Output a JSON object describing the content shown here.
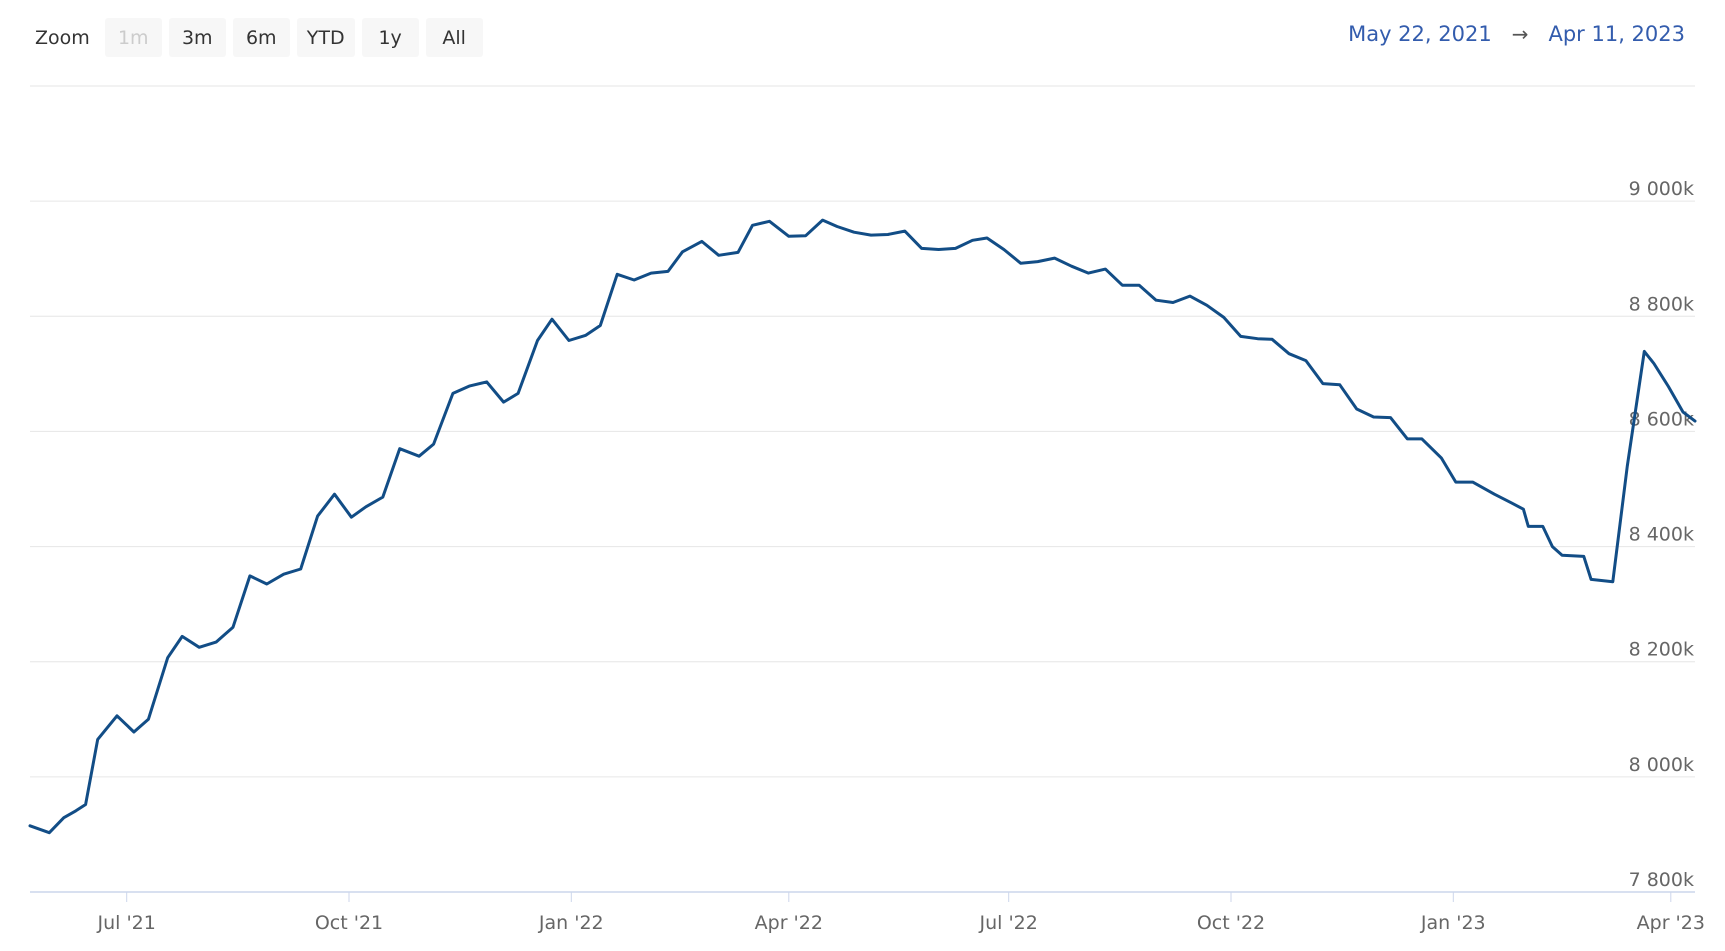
{
  "toolbar": {
    "zoom_label": "Zoom",
    "buttons": [
      {
        "label": "1m",
        "enabled": false
      },
      {
        "label": "3m",
        "enabled": true
      },
      {
        "label": "6m",
        "enabled": true
      },
      {
        "label": "YTD",
        "enabled": true
      },
      {
        "label": "1y",
        "enabled": true
      },
      {
        "label": "All",
        "enabled": true
      }
    ],
    "range": {
      "from": "May 22, 2021",
      "arrow": "→",
      "to": "Apr 11, 2023"
    }
  },
  "colors": {
    "line": "#124d86",
    "grid": "#e6e6e6",
    "axis_line": "#ccd6eb",
    "axis_label": "#666666",
    "range_text": "#335cad",
    "button_bg": "#f7f7f7",
    "button_text": "#333333",
    "button_disabled_text": "#cccccc",
    "background": "#ffffff"
  },
  "chart_data": {
    "type": "line",
    "title": "",
    "xlabel": "",
    "ylabel": "",
    "x_start_label": "May 22, 2021",
    "x_end_label": "Apr 11, 2023",
    "total_days": 689,
    "x_tick_days": [
      40,
      132,
      224,
      314,
      405,
      497,
      589,
      679
    ],
    "x_tick_labels": [
      "Jul '21",
      "Oct '21",
      "Jan '22",
      "Apr '22",
      "Jul '22",
      "Oct '22",
      "Jan '23",
      "Apr '23"
    ],
    "y_tick_values": [
      9000,
      8800,
      8600,
      8400,
      8200,
      8000,
      7800
    ],
    "y_tick_labels": [
      "9 000k",
      "8 800k",
      "8 600k",
      "8 400k",
      "8 200k",
      "8 000k",
      "7 800k"
    ],
    "grid_values": [
      9200,
      9000,
      8800,
      8600,
      8400,
      8200,
      8000,
      7800
    ],
    "ylim": [
      7800,
      9200
    ],
    "unit": "k",
    "legend": "off",
    "grid": "on",
    "points_day_value": [
      [
        0,
        7915
      ],
      [
        8,
        7903
      ],
      [
        14,
        7929
      ],
      [
        19,
        7941
      ],
      [
        23,
        7952
      ],
      [
        28,
        8065
      ],
      [
        36,
        8106
      ],
      [
        43,
        8078
      ],
      [
        49,
        8100
      ],
      [
        57,
        8207
      ],
      [
        63,
        8244
      ],
      [
        70,
        8225
      ],
      [
        77,
        8234
      ],
      [
        84,
        8260
      ],
      [
        91,
        8349
      ],
      [
        98,
        8335
      ],
      [
        105,
        8352
      ],
      [
        112,
        8361
      ],
      [
        119,
        8453
      ],
      [
        126,
        8491
      ],
      [
        133,
        8451
      ],
      [
        139,
        8469
      ],
      [
        146,
        8486
      ],
      [
        153,
        8570
      ],
      [
        161,
        8557
      ],
      [
        167,
        8578
      ],
      [
        175,
        8666
      ],
      [
        182,
        8679
      ],
      [
        189,
        8686
      ],
      [
        196,
        8651
      ],
      [
        202,
        8666
      ],
      [
        210,
        8758
      ],
      [
        216,
        8795
      ],
      [
        223,
        8758
      ],
      [
        230,
        8767
      ],
      [
        236,
        8784
      ],
      [
        243,
        8873
      ],
      [
        250,
        8863
      ],
      [
        257,
        8875
      ],
      [
        264,
        8878
      ],
      [
        270,
        8912
      ],
      [
        278,
        8930
      ],
      [
        285,
        8906
      ],
      [
        293,
        8911
      ],
      [
        299,
        8958
      ],
      [
        306,
        8965
      ],
      [
        314,
        8939
      ],
      [
        321,
        8940
      ],
      [
        328,
        8967
      ],
      [
        334,
        8956
      ],
      [
        341,
        8946
      ],
      [
        348,
        8941
      ],
      [
        355,
        8942
      ],
      [
        362,
        8948
      ],
      [
        369,
        8918
      ],
      [
        376,
        8916
      ],
      [
        383,
        8918
      ],
      [
        390,
        8932
      ],
      [
        396,
        8936
      ],
      [
        403,
        8916
      ],
      [
        410,
        8892
      ],
      [
        417,
        8895
      ],
      [
        424,
        8901
      ],
      [
        431,
        8887
      ],
      [
        438,
        8875
      ],
      [
        445,
        8882
      ],
      [
        452,
        8854
      ],
      [
        459,
        8854
      ],
      [
        466,
        8828
      ],
      [
        473,
        8824
      ],
      [
        480,
        8835
      ],
      [
        487,
        8819
      ],
      [
        494,
        8798
      ],
      [
        501,
        8765
      ],
      [
        508,
        8761
      ],
      [
        514,
        8760
      ],
      [
        521,
        8735
      ],
      [
        528,
        8723
      ],
      [
        535,
        8683
      ],
      [
        542,
        8681
      ],
      [
        549,
        8639
      ],
      [
        556,
        8625
      ],
      [
        563,
        8624
      ],
      [
        570,
        8587
      ],
      [
        576,
        8587
      ],
      [
        584,
        8554
      ],
      [
        590,
        8512
      ],
      [
        597,
        8512
      ],
      [
        606,
        8491
      ],
      [
        613,
        8476
      ],
      [
        618,
        8465
      ],
      [
        620,
        8435
      ],
      [
        626,
        8435
      ],
      [
        630,
        8400
      ],
      [
        634,
        8385
      ],
      [
        643,
        8383
      ],
      [
        646,
        8343
      ],
      [
        655,
        8339
      ],
      [
        661,
        8540
      ],
      [
        668,
        8739
      ],
      [
        672,
        8718
      ],
      [
        678,
        8678
      ],
      [
        684,
        8634
      ],
      [
        689,
        8618
      ]
    ]
  }
}
